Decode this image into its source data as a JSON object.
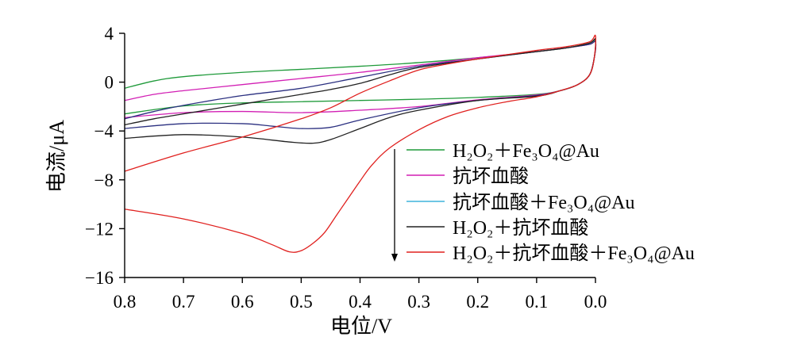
{
  "chart_data": {
    "type": "line",
    "xlabel": "电位/V",
    "ylabel": "电流/μA",
    "x_reversed": true,
    "xlim": [
      0.8,
      0.0
    ],
    "ylim": [
      -16,
      4
    ],
    "grid": false,
    "legend_position": "right",
    "x_ticks": [
      {
        "value": 0.8,
        "label": "0.8"
      },
      {
        "value": 0.7,
        "label": "0.7"
      },
      {
        "value": 0.6,
        "label": "0.6"
      },
      {
        "value": 0.5,
        "label": "0.5"
      },
      {
        "value": 0.4,
        "label": "0.4"
      },
      {
        "value": 0.3,
        "label": "0.3"
      },
      {
        "value": 0.2,
        "label": "0.2"
      },
      {
        "value": 0.1,
        "label": "0.1"
      },
      {
        "value": 0.0,
        "label": "0.0"
      }
    ],
    "y_ticks": [
      {
        "value": 4,
        "label": "4"
      },
      {
        "value": 0,
        "label": "0"
      },
      {
        "value": -4,
        "label": "−4"
      },
      {
        "value": -8,
        "label": "−8"
      },
      {
        "value": -12,
        "label": "−12"
      },
      {
        "value": -16,
        "label": "−16"
      }
    ],
    "series": [
      {
        "name": "H₂O₂＋Fe₃O₄@Au",
        "color": "#1f9a3a",
        "legend_color": "#1f9a3a",
        "points": [
          [
            0.8,
            -0.5
          ],
          [
            0.75,
            0.1
          ],
          [
            0.7,
            0.45
          ],
          [
            0.6,
            0.8
          ],
          [
            0.5,
            1.05
          ],
          [
            0.4,
            1.3
          ],
          [
            0.3,
            1.6
          ],
          [
            0.2,
            2.0
          ],
          [
            0.1,
            2.5
          ],
          [
            0.05,
            2.8
          ],
          [
            0.01,
            3.2
          ],
          [
            0.0,
            3.4
          ],
          [
            0.002,
            2.0
          ],
          [
            0.01,
            0.6
          ],
          [
            0.03,
            -0.2
          ],
          [
            0.06,
            -0.7
          ],
          [
            0.1,
            -1.0
          ],
          [
            0.2,
            -1.25
          ],
          [
            0.3,
            -1.4
          ],
          [
            0.4,
            -1.5
          ],
          [
            0.5,
            -1.6
          ],
          [
            0.6,
            -1.7
          ],
          [
            0.7,
            -1.95
          ],
          [
            0.8,
            -2.6
          ]
        ]
      },
      {
        "name": "抗坏血酸",
        "color": "#d21fb4",
        "legend_color": "#d21fb4",
        "points": [
          [
            0.8,
            -1.5
          ],
          [
            0.75,
            -1.0
          ],
          [
            0.7,
            -0.7
          ],
          [
            0.6,
            -0.2
          ],
          [
            0.5,
            0.3
          ],
          [
            0.4,
            0.8
          ],
          [
            0.3,
            1.4
          ],
          [
            0.2,
            2.0
          ],
          [
            0.1,
            2.5
          ],
          [
            0.05,
            2.8
          ],
          [
            0.01,
            3.1
          ],
          [
            0.0,
            3.3
          ],
          [
            0.002,
            2.0
          ],
          [
            0.01,
            0.6
          ],
          [
            0.03,
            -0.2
          ],
          [
            0.06,
            -0.7
          ],
          [
            0.1,
            -1.05
          ],
          [
            0.2,
            -1.45
          ],
          [
            0.3,
            -2.0
          ],
          [
            0.4,
            -2.3
          ],
          [
            0.5,
            -2.5
          ],
          [
            0.6,
            -2.4
          ],
          [
            0.7,
            -2.5
          ],
          [
            0.8,
            -2.9
          ]
        ]
      },
      {
        "name": "抗坏血酸＋Fe₃O₄@Au",
        "color": "#2b3080",
        "legend_color": "#3fb3dc",
        "points": [
          [
            0.8,
            -3.0
          ],
          [
            0.75,
            -2.4
          ],
          [
            0.7,
            -1.9
          ],
          [
            0.6,
            -1.1
          ],
          [
            0.5,
            -0.5
          ],
          [
            0.4,
            0.4
          ],
          [
            0.3,
            1.3
          ],
          [
            0.2,
            1.9
          ],
          [
            0.1,
            2.5
          ],
          [
            0.05,
            2.8
          ],
          [
            0.01,
            3.1
          ],
          [
            0.0,
            3.3
          ],
          [
            0.002,
            2.0
          ],
          [
            0.01,
            0.6
          ],
          [
            0.03,
            -0.2
          ],
          [
            0.06,
            -0.7
          ],
          [
            0.1,
            -1.1
          ],
          [
            0.2,
            -1.5
          ],
          [
            0.3,
            -2.1
          ],
          [
            0.4,
            -3.1
          ],
          [
            0.45,
            -3.7
          ],
          [
            0.5,
            -3.8
          ],
          [
            0.55,
            -3.6
          ],
          [
            0.6,
            -3.4
          ],
          [
            0.7,
            -3.4
          ],
          [
            0.8,
            -3.8
          ]
        ]
      },
      {
        "name": "H₂O₂＋抗坏血酸",
        "color": "#222222",
        "legend_color": "#222222",
        "points": [
          [
            0.8,
            -3.5
          ],
          [
            0.75,
            -3.0
          ],
          [
            0.7,
            -2.6
          ],
          [
            0.6,
            -1.8
          ],
          [
            0.5,
            -1.0
          ],
          [
            0.45,
            -0.6
          ],
          [
            0.4,
            -0.1
          ],
          [
            0.35,
            0.6
          ],
          [
            0.3,
            1.2
          ],
          [
            0.2,
            1.9
          ],
          [
            0.1,
            2.5
          ],
          [
            0.05,
            2.8
          ],
          [
            0.01,
            3.2
          ],
          [
            0.0,
            3.5
          ],
          [
            0.002,
            2.0
          ],
          [
            0.01,
            0.6
          ],
          [
            0.03,
            -0.2
          ],
          [
            0.06,
            -0.7
          ],
          [
            0.1,
            -1.15
          ],
          [
            0.2,
            -1.5
          ],
          [
            0.3,
            -2.3
          ],
          [
            0.35,
            -2.9
          ],
          [
            0.4,
            -3.8
          ],
          [
            0.45,
            -4.7
          ],
          [
            0.48,
            -5.0
          ],
          [
            0.52,
            -4.9
          ],
          [
            0.6,
            -4.5
          ],
          [
            0.7,
            -4.3
          ],
          [
            0.8,
            -4.6
          ]
        ]
      },
      {
        "name": "H₂O₂＋抗坏血酸＋Fe₃O₄@Au",
        "color": "#e0201e",
        "legend_color": "#e0201e",
        "points": [
          [
            0.8,
            -7.3
          ],
          [
            0.7,
            -5.8
          ],
          [
            0.6,
            -4.5
          ],
          [
            0.5,
            -3.0
          ],
          [
            0.45,
            -2.1
          ],
          [
            0.4,
            -0.9
          ],
          [
            0.35,
            0.1
          ],
          [
            0.3,
            1.0
          ],
          [
            0.25,
            1.5
          ],
          [
            0.2,
            1.9
          ],
          [
            0.1,
            2.6
          ],
          [
            0.05,
            2.9
          ],
          [
            0.01,
            3.3
          ],
          [
            0.0,
            3.8
          ],
          [
            0.002,
            2.0
          ],
          [
            0.01,
            0.6
          ],
          [
            0.03,
            -0.2
          ],
          [
            0.06,
            -0.7
          ],
          [
            0.1,
            -1.2
          ],
          [
            0.15,
            -1.6
          ],
          [
            0.2,
            -2.1
          ],
          [
            0.25,
            -2.8
          ],
          [
            0.3,
            -3.9
          ],
          [
            0.35,
            -5.4
          ],
          [
            0.38,
            -6.8
          ],
          [
            0.4,
            -8.1
          ],
          [
            0.42,
            -9.5
          ],
          [
            0.44,
            -10.9
          ],
          [
            0.46,
            -12.3
          ],
          [
            0.48,
            -13.2
          ],
          [
            0.5,
            -13.8
          ],
          [
            0.52,
            -13.9
          ],
          [
            0.55,
            -13.3
          ],
          [
            0.6,
            -12.4
          ],
          [
            0.7,
            -11.2
          ],
          [
            0.8,
            -10.4
          ]
        ]
      }
    ]
  }
}
